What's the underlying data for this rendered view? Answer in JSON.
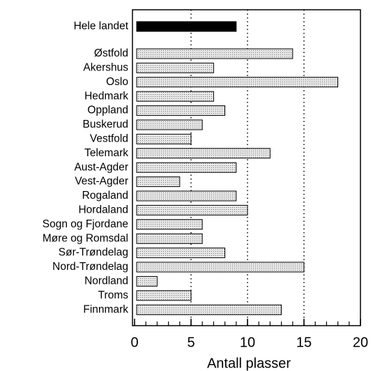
{
  "chart_data": {
    "type": "barh",
    "categories": [
      "Hele landet",
      "Østfold",
      "Akershus",
      "Oslo",
      "Hedmark",
      "Oppland",
      "Buskerud",
      "Vestfold",
      "Telemark",
      "Aust-Agder",
      "Vest-Agder",
      "Rogaland",
      "Hordaland",
      "Sogn og Fjordane",
      "Møre og Romsdal",
      "Sør-Trøndelag",
      "Nord-Trøndelag",
      "Nordland",
      "Troms",
      "Finnmark"
    ],
    "values": [
      9,
      14,
      7,
      18,
      7,
      8,
      6,
      5,
      12,
      9,
      4,
      9,
      10,
      6,
      6,
      8,
      15,
      2,
      5,
      13
    ],
    "colors": [
      "#000000",
      "#cccccc",
      "#cccccc",
      "#cccccc",
      "#cccccc",
      "#cccccc",
      "#cccccc",
      "#cccccc",
      "#cccccc",
      "#cccccc",
      "#cccccc",
      "#cccccc",
      "#cccccc",
      "#cccccc",
      "#cccccc",
      "#cccccc",
      "#cccccc",
      "#cccccc",
      "#cccccc",
      "#cccccc"
    ],
    "xlabel": "Antall plasser",
    "xlim": [
      0,
      20
    ],
    "xticks": [
      0,
      5,
      10,
      15,
      20
    ],
    "xminorticks": [
      0,
      1,
      2,
      3,
      4,
      5,
      6,
      7,
      8,
      9,
      10,
      11,
      12,
      13,
      14,
      15,
      16,
      17,
      18,
      19,
      20
    ],
    "grid": true
  }
}
